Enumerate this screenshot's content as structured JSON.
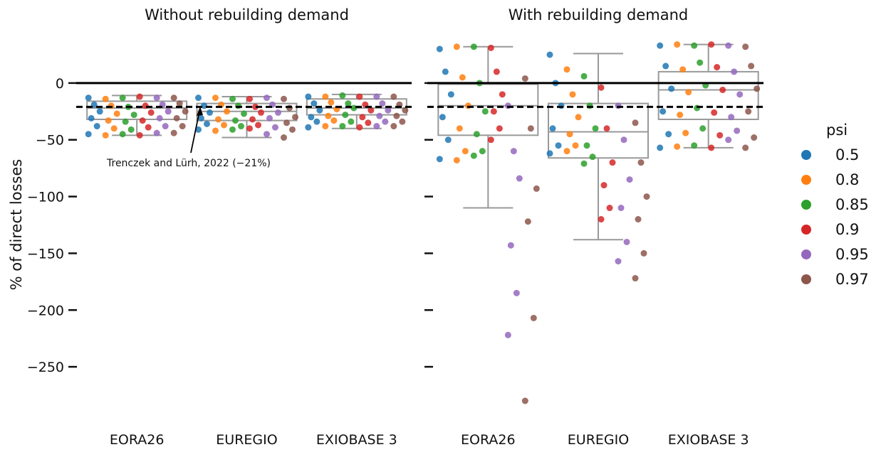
{
  "chart_data": [
    {
      "type": "box",
      "title": "Without rebuilding demand",
      "y_label": "% of direct losses",
      "legend_title": "psi",
      "annotation": "Trenczek and Lürh, 2022 (−21%)",
      "categories": [
        "EORA26",
        "EUREGIO",
        "EXIOBASE 3"
      ],
      "ylim": [
        -290,
        45
      ],
      "yticks": [
        0,
        {
          "value": -50,
          "label": "−50"
        },
        {
          "value": -100,
          "label": "−100"
        },
        {
          "value": -150,
          "label": "−150"
        },
        {
          "value": -200,
          "label": "−200"
        },
        {
          "value": -250,
          "label": "−250"
        }
      ],
      "hlines": [
        {
          "value": 0,
          "style": "solid"
        },
        {
          "value": -21,
          "style": "dashed"
        }
      ],
      "boxes": [
        {
          "low": -46,
          "q1": -32,
          "median": -22,
          "q3": -16,
          "high": -11
        },
        {
          "low": -48,
          "q1": -33,
          "median": -25,
          "q3": -18,
          "high": -12
        },
        {
          "low": -40,
          "q1": -28,
          "median": -22,
          "q3": -14,
          "high": -10
        }
      ],
      "series": [
        {
          "name": "0.5",
          "color": "#1f77b4",
          "values": [
            [
              -13,
              -19,
              -25,
              -31,
              -38,
              -45
            ],
            [
              -13,
              -20,
              -26,
              -31,
              -36,
              -41
            ],
            [
              -12,
              -18,
              -24,
              -30,
              -34,
              -39
            ]
          ]
        },
        {
          "name": "0.8",
          "color": "#ff7f0e",
          "values": [
            [
              -14,
              -20,
              -27,
              -33,
              -40,
              -46
            ],
            [
              -13,
              -19,
              -25,
              -32,
              -37,
              -42
            ],
            [
              -12,
              -17,
              -23,
              -29,
              -33,
              -38
            ]
          ]
        },
        {
          "name": "0.85",
          "color": "#2ca02c",
          "values": [
            [
              -13,
              -21,
              -28,
              -34,
              -41,
              -45
            ],
            [
              -14,
              -20,
              -27,
              -33,
              -38,
              -41
            ],
            [
              -11,
              -18,
              -22,
              -28,
              -34,
              -38
            ]
          ]
        },
        {
          "name": "0.9",
          "color": "#d62728",
          "values": [
            [
              -12,
              -20,
              -26,
              -33,
              -39,
              -46
            ],
            [
              -14,
              -21,
              -26,
              -32,
              -37,
              -40
            ],
            [
              -12,
              -19,
              -24,
              -30,
              -35,
              -39
            ]
          ]
        },
        {
          "name": "0.95",
          "color": "#9467bd",
          "values": [
            [
              -13,
              -19,
              -25,
              -31,
              -38,
              -44
            ],
            [
              -13,
              -19,
              -26,
              -31,
              -39,
              -45
            ],
            [
              -12,
              -18,
              -24,
              -29,
              -34,
              -38
            ]
          ]
        },
        {
          "name": "0.97",
          "color": "#8c564b",
          "values": [
            [
              -13,
              -18,
              -25,
              -31,
              -38,
              -44
            ],
            [
              -14,
              -22,
              -30,
              -35,
              -41,
              -48
            ],
            [
              -12,
              -19,
              -24,
              -29,
              -34,
              -38
            ]
          ]
        }
      ]
    },
    {
      "type": "box",
      "title": "With rebuilding demand",
      "categories": [
        "EORA26",
        "EUREGIO",
        "EXIOBASE 3"
      ],
      "ylim": [
        -290,
        45
      ],
      "yticks": [
        0,
        -50,
        -100,
        -150,
        -200,
        -250
      ],
      "hlines": [
        {
          "value": 0,
          "style": "solid"
        },
        {
          "value": -21,
          "style": "dashed"
        }
      ],
      "boxes": [
        {
          "low": -110,
          "q1": -46,
          "median": -20,
          "q3": -1,
          "high": 32
        },
        {
          "low": -138,
          "q1": -66,
          "median": -43,
          "q3": -18,
          "high": 26
        },
        {
          "low": -57,
          "q1": -32,
          "median": -6,
          "q3": 10,
          "high": 34
        }
      ],
      "series": [
        {
          "name": "0.5",
          "color": "#1f77b4",
          "values": [
            [
              30,
              10,
              -10,
              -30,
              -50,
              -67
            ],
            [
              25,
              0,
              -20,
              -40,
              -55,
              -62
            ],
            [
              33,
              15,
              -5,
              -25,
              -45,
              -57
            ]
          ]
        },
        {
          "name": "0.8",
          "color": "#ff7f0e",
          "values": [
            [
              32,
              5,
              -20,
              -40,
              -60,
              -68
            ],
            [
              12,
              -10,
              -30,
              -45,
              -55,
              -60
            ],
            [
              34,
              12,
              -8,
              -28,
              -44,
              -56
            ]
          ]
        },
        {
          "name": "0.85",
          "color": "#2ca02c",
          "values": [
            [
              32,
              0,
              -25,
              -45,
              -60,
              -64
            ],
            [
              6,
              -20,
              -40,
              -55,
              -65,
              -71
            ],
            [
              33,
              18,
              -2,
              -22,
              -40,
              -55
            ]
          ]
        },
        {
          "name": "0.9",
          "color": "#d62728",
          "values": [
            [
              31,
              10,
              -10,
              -25,
              -40,
              -50
            ],
            [
              -4,
              -40,
              -70,
              -90,
              -110,
              -120
            ],
            [
              34,
              14,
              -6,
              -26,
              -46,
              -57
            ]
          ]
        },
        {
          "name": "0.95",
          "color": "#9467bd",
          "values": [
            [
              -20,
              -60,
              -84,
              -143,
              -185,
              -222
            ],
            [
              -20,
              -50,
              -85,
              -110,
              -140,
              -157
            ],
            [
              33,
              10,
              -10,
              -30,
              -42,
              -50
            ]
          ]
        },
        {
          "name": "0.97",
          "color": "#8c564b",
          "values": [
            [
              4,
              -40,
              -93,
              -122,
              -207,
              -280
            ],
            [
              -35,
              -70,
              -100,
              -120,
              -150,
              -172
            ],
            [
              32,
              15,
              -5,
              -25,
              -48,
              -57
            ]
          ]
        }
      ]
    }
  ]
}
